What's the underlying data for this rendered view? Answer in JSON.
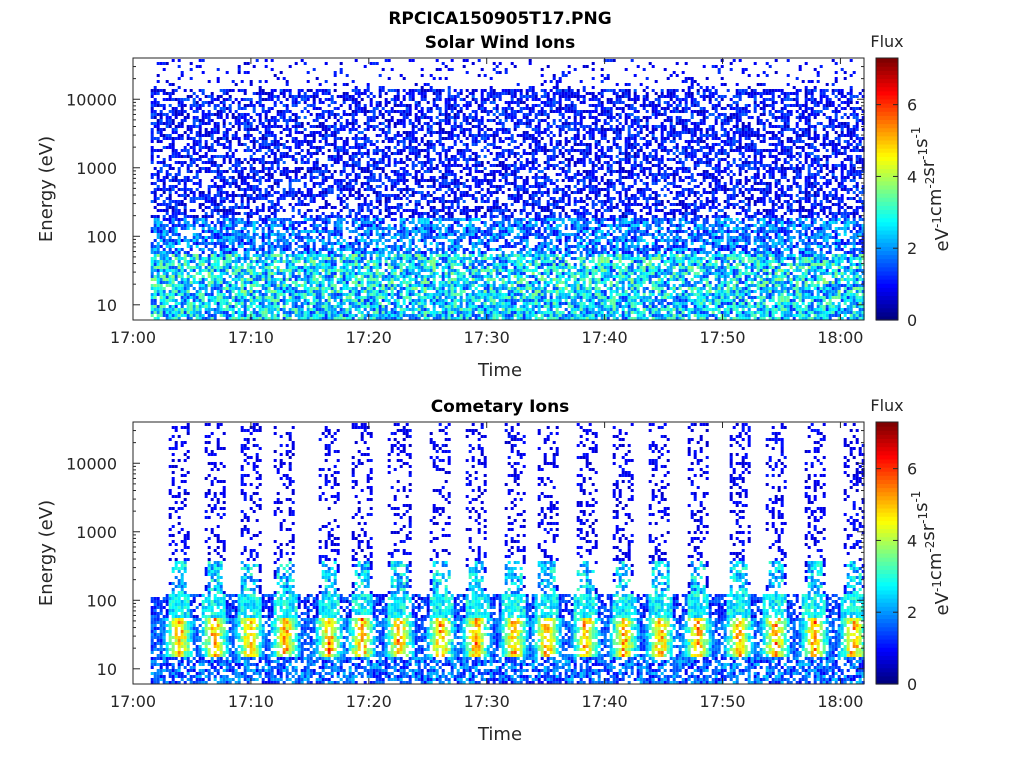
{
  "figure_title": "RPCICA150905T17.PNG",
  "chart_data": [
    {
      "type": "heatmap",
      "title": "Solar Wind Ions",
      "xlabel": "Time",
      "ylabel": "Energy (eV)",
      "y_scale": "log",
      "ylim": [
        6,
        40000
      ],
      "x_range": [
        "17:00",
        "18:02"
      ],
      "x_ticks": [
        "17:00",
        "17:10",
        "17:20",
        "17:30",
        "17:40",
        "17:50",
        "18:00"
      ],
      "y_ticks": [
        "10",
        "100",
        "1000",
        "10000"
      ],
      "colorbar": {
        "label": "Flux",
        "unit": "eV-1cm-2sr-1s-1",
        "range": [
          0,
          7.3
        ],
        "ticks": [
          "0",
          "2",
          "4",
          "6"
        ],
        "colormap": "jet"
      },
      "summary": [
        {
          "energy_band_eV": "8-15",
          "flux_level": 2.5
        },
        {
          "energy_band_eV": "15-60",
          "flux_level": 2.8
        },
        {
          "energy_band_eV": "60-200",
          "flux_level": 1.6
        },
        {
          "energy_band_eV": "200-15000",
          "flux_level": 0.8
        }
      ]
    },
    {
      "type": "heatmap",
      "title": "Cometary Ions",
      "xlabel": "Time",
      "ylabel": "Energy (eV)",
      "y_scale": "log",
      "ylim": [
        6,
        40000
      ],
      "x_range": [
        "17:00",
        "18:02"
      ],
      "x_ticks": [
        "17:00",
        "17:10",
        "17:20",
        "17:30",
        "17:40",
        "17:50",
        "18:00"
      ],
      "y_ticks": [
        "10",
        "100",
        "1000",
        "10000"
      ],
      "colorbar": {
        "label": "Flux",
        "unit": "eV-1cm-2sr-1s-1",
        "range": [
          0,
          7.3
        ],
        "ticks": [
          "0",
          "2",
          "4",
          "6"
        ],
        "colormap": "jet"
      },
      "bursts_minutes_after_1700": [
        3.8,
        6.8,
        9.8,
        12.8,
        16.5,
        19.3,
        22.5,
        26.0,
        29.0,
        32.2,
        35.0,
        38.3,
        41.5,
        44.6,
        47.8,
        51.3,
        54.4,
        57.7,
        61.0
      ],
      "peak_energy_eV": 35,
      "peak_flux": 6.5
    }
  ]
}
